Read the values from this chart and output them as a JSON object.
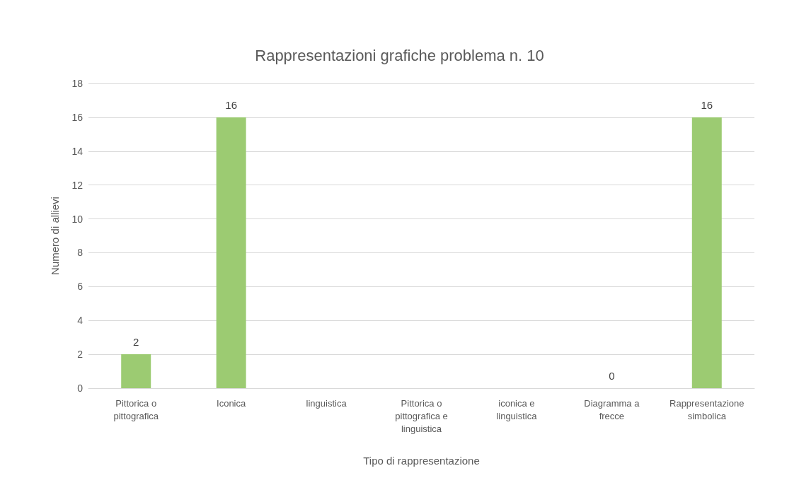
{
  "chart_data": {
    "type": "bar",
    "title": "Rappresentazioni grafiche problema n. 10",
    "xlabel": "Tipo di rappresentazione",
    "ylabel": "Numero di allievi",
    "categories": [
      "Pittorica o\npittografica",
      "Iconica",
      "linguistica",
      "Pittorica o\npittografica e\nlinguistica",
      "iconica e\nlinguistica",
      "Diagramma a\nfrecce",
      "Rappresentazione\nsimbolica"
    ],
    "values": [
      2,
      16,
      null,
      null,
      null,
      0,
      16
    ],
    "value_labels": [
      "2",
      "16",
      null,
      null,
      null,
      "0",
      "16"
    ],
    "color": "#9ccb72",
    "ylim": [
      0,
      18
    ],
    "yticks": [
      0,
      2,
      4,
      6,
      8,
      10,
      12,
      14,
      16,
      18
    ],
    "grid": "y"
  }
}
